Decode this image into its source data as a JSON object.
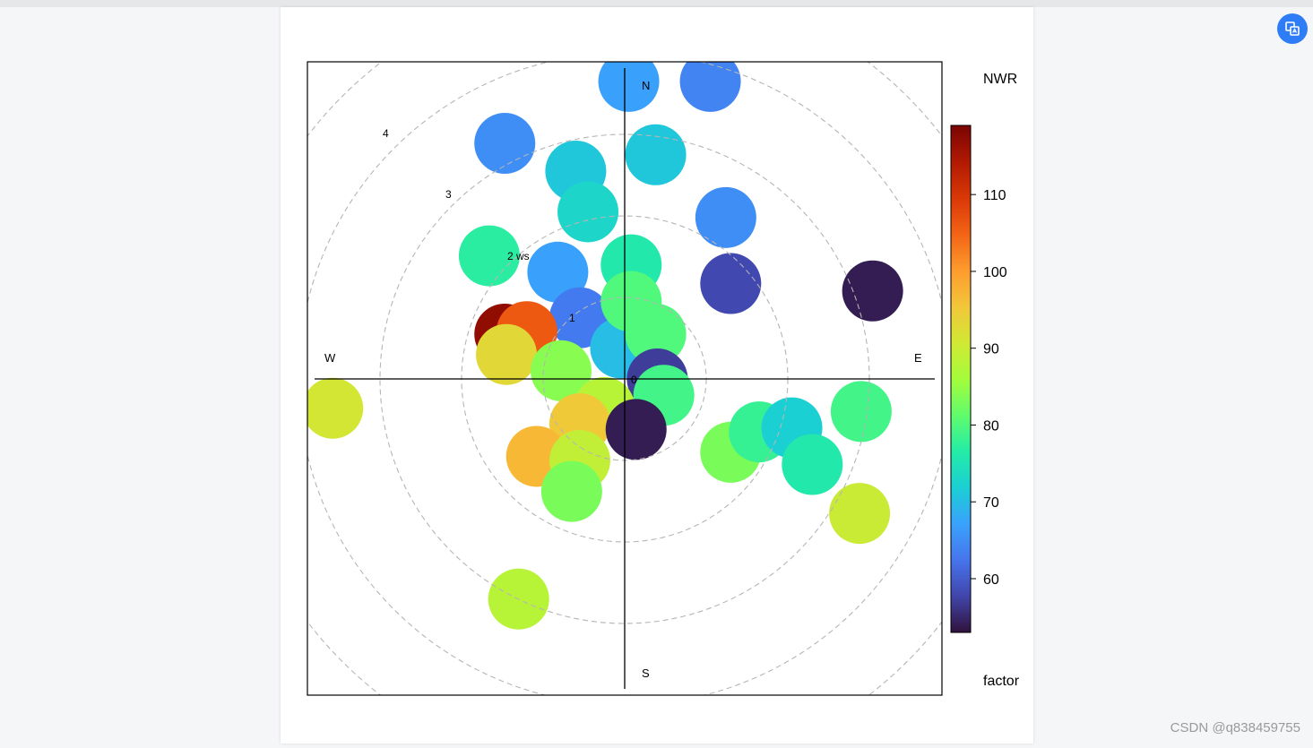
{
  "toolbar": {
    "corner_icon": "translate-icon",
    "accent": "#2f7df6"
  },
  "watermark": "CSDN @q838459755",
  "chart_data": {
    "type": "heatmap",
    "subtype": "polar plot",
    "legend_title": "NWR",
    "legend_subtitle": "factor",
    "colorscale": [
      "#30123b",
      "#4145ab",
      "#4675ed",
      "#39a2fc",
      "#1bcfd4",
      "#24eca6",
      "#61fc6c",
      "#a4fc3b",
      "#d1e834",
      "#f3c63a",
      "#fe9b2d",
      "#f36315",
      "#d93806",
      "#b11901",
      "#7a0403"
    ],
    "color_range": [
      53,
      119
    ],
    "color_ticks": [
      60,
      70,
      80,
      90,
      100,
      110
    ],
    "radial_ticks": [
      "0",
      "1",
      "2 ws",
      "3",
      "4"
    ],
    "radial_values": [
      0,
      1,
      2,
      3,
      4
    ],
    "radial_max": 4,
    "compass": {
      "n": "N",
      "e": "E",
      "s": "S",
      "w": "W"
    },
    "grid": "dashed circles",
    "blobs": [
      {
        "u": 0.05,
        "v": 3.65,
        "value": 67
      },
      {
        "u": 1.05,
        "v": 3.65,
        "value": 64
      },
      {
        "u": -1.47,
        "v": 2.89,
        "value": 65
      },
      {
        "u": -0.6,
        "v": 2.55,
        "value": 71
      },
      {
        "u": -0.45,
        "v": 2.05,
        "value": 73
      },
      {
        "u": 0.38,
        "v": 2.75,
        "value": 71
      },
      {
        "u": 1.24,
        "v": 1.98,
        "value": 65
      },
      {
        "u": -1.66,
        "v": 1.51,
        "value": 77
      },
      {
        "u": 1.3,
        "v": 1.17,
        "value": 58
      },
      {
        "u": 3.04,
        "v": 1.08,
        "value": 54
      },
      {
        "u": -0.82,
        "v": 1.31,
        "value": 67
      },
      {
        "u": 0.08,
        "v": 1.4,
        "value": 76
      },
      {
        "u": -0.55,
        "v": 0.75,
        "value": 63
      },
      {
        "u": -0.05,
        "v": 0.38,
        "value": 70
      },
      {
        "u": 0.08,
        "v": 0.95,
        "value": 80
      },
      {
        "u": 0.38,
        "v": 0.55,
        "value": 80
      },
      {
        "u": -1.47,
        "v": 0.55,
        "value": 117
      },
      {
        "u": -1.2,
        "v": 0.58,
        "value": 106
      },
      {
        "u": -1.45,
        "v": 0.3,
        "value": 93
      },
      {
        "u": -0.78,
        "v": 0.1,
        "value": 84
      },
      {
        "u": 0.4,
        "v": 0.0,
        "value": 57
      },
      {
        "u": 0.48,
        "v": -0.2,
        "value": 79
      },
      {
        "u": -0.25,
        "v": -0.35,
        "value": 88
      },
      {
        "u": -0.55,
        "v": -0.55,
        "value": 95
      },
      {
        "u": 0.14,
        "v": -0.62,
        "value": 54
      },
      {
        "u": -1.08,
        "v": -0.95,
        "value": 97
      },
      {
        "u": -0.55,
        "v": -1.0,
        "value": 89
      },
      {
        "u": -0.65,
        "v": -1.38,
        "value": 83
      },
      {
        "u": -3.58,
        "v": -0.36,
        "value": 91
      },
      {
        "u": 1.3,
        "v": -0.9,
        "value": 83
      },
      {
        "u": 1.65,
        "v": -0.65,
        "value": 78
      },
      {
        "u": 2.05,
        "v": -0.6,
        "value": 72
      },
      {
        "u": 2.3,
        "v": -1.05,
        "value": 76
      },
      {
        "u": 2.9,
        "v": -0.4,
        "value": 79
      },
      {
        "u": 2.88,
        "v": -1.65,
        "value": 90
      },
      {
        "u": -1.3,
        "v": -2.7,
        "value": 88
      }
    ]
  }
}
